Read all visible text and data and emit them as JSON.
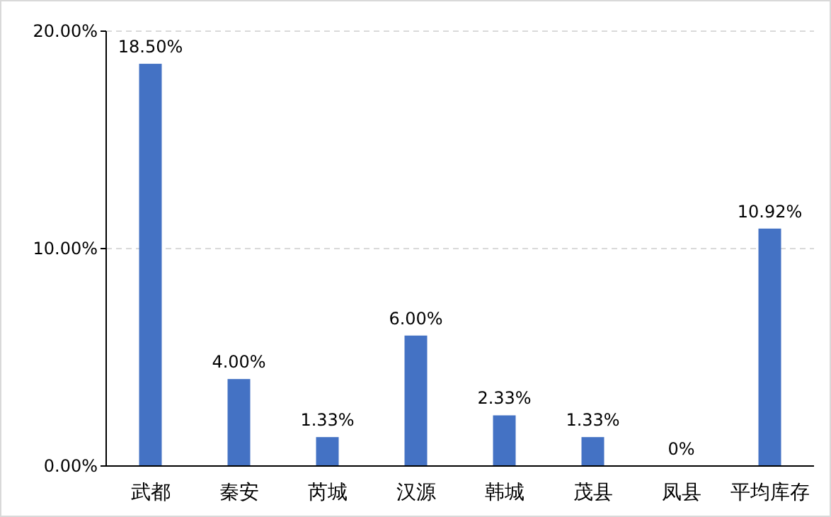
{
  "chart_data": {
    "type": "bar",
    "categories": [
      "武都",
      "秦安",
      "芮城",
      "汉源",
      "韩城",
      "茂县",
      "凤县",
      "平均库存"
    ],
    "values": [
      18.5,
      4.0,
      1.33,
      6.0,
      2.33,
      1.33,
      0,
      10.92
    ],
    "value_labels": [
      "18.50%",
      "4.00%",
      "1.33%",
      "6.00%",
      "2.33%",
      "1.33%",
      "0%",
      "10.92%"
    ],
    "color": "#4472c4",
    "ylim": [
      0,
      20
    ],
    "yticks": [
      {
        "value": 0,
        "label": "0.00%"
      },
      {
        "value": 10,
        "label": "10.00%"
      },
      {
        "value": 20,
        "label": "20.00%"
      }
    ],
    "grid": "y"
  }
}
